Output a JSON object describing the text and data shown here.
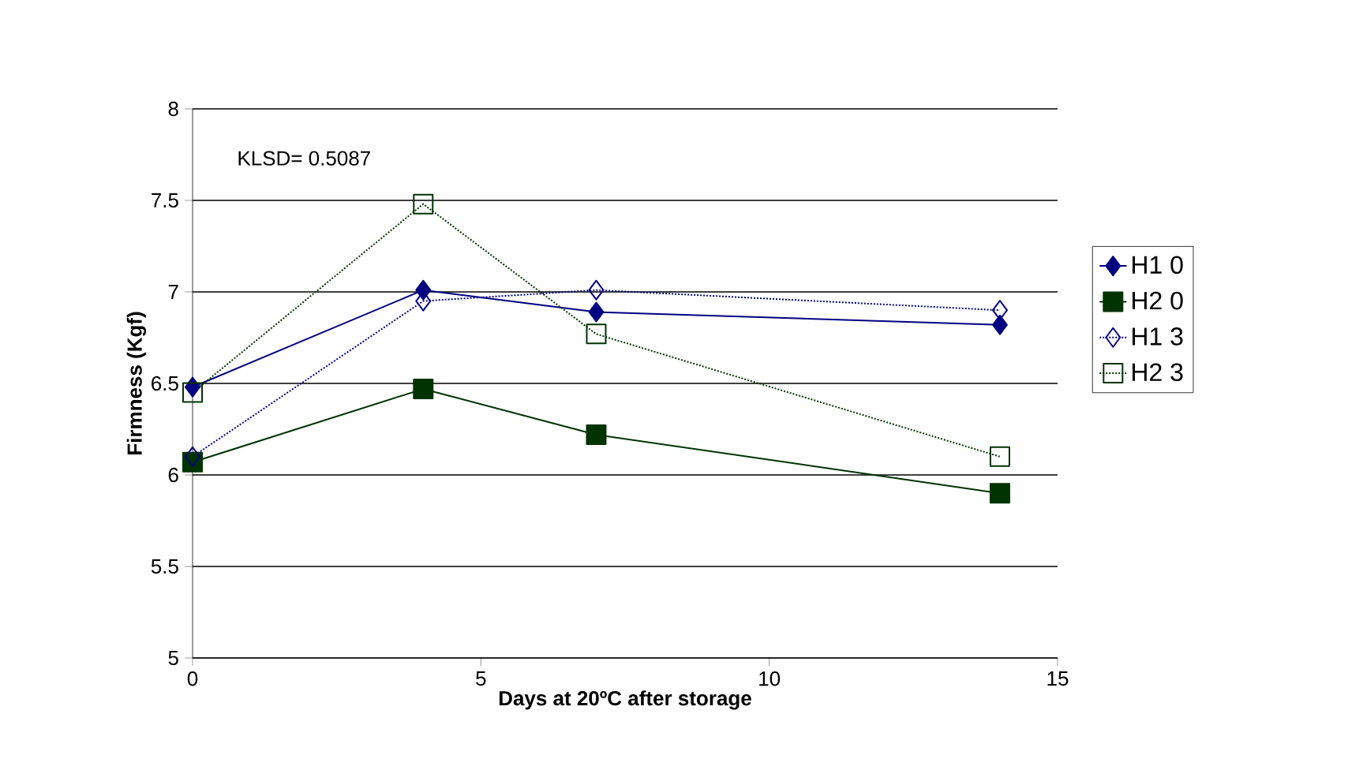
{
  "chart_data": {
    "type": "line",
    "xlabel": "Days at 20ºC after storage",
    "ylabel": "Firmness (Kgf)",
    "x": [
      0,
      4,
      7,
      14
    ],
    "series": [
      {
        "name": "H1 0",
        "color": "#000080",
        "values": [
          6.48,
          7.01,
          6.89,
          6.82
        ],
        "marker": "diamond",
        "line_style": "solid"
      },
      {
        "name": "H2 0",
        "color": "#003300",
        "values": [
          6.07,
          6.47,
          6.22,
          5.9
        ],
        "marker": "square",
        "line_style": "solid"
      },
      {
        "name": "H1 3",
        "color": "#000080",
        "values": [
          6.1,
          6.95,
          7.01,
          6.9
        ],
        "marker": "diamond",
        "line_style": "dotted"
      },
      {
        "name": "H2 3",
        "color": "#003300",
        "values": [
          6.45,
          7.48,
          6.77,
          6.1
        ],
        "marker": "square",
        "line_style": "dotted"
      }
    ],
    "xlim": [
      0,
      15
    ],
    "xticks": [
      0,
      5,
      10,
      15
    ],
    "ylim": [
      5,
      8
    ],
    "yticks": [
      5,
      5.5,
      6,
      6.5,
      7,
      7.5,
      8
    ],
    "grid": "y",
    "legend": "right",
    "annotations": [
      "KLSD= 0.5087"
    ]
  }
}
